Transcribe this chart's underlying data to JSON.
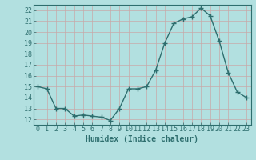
{
  "x": [
    0,
    1,
    2,
    3,
    4,
    5,
    6,
    7,
    8,
    9,
    10,
    11,
    12,
    13,
    14,
    15,
    16,
    17,
    18,
    19,
    20,
    21,
    22,
    23
  ],
  "y": [
    15.0,
    14.8,
    13.0,
    13.0,
    12.3,
    12.4,
    12.3,
    12.2,
    11.9,
    13.0,
    14.8,
    14.8,
    15.0,
    16.5,
    19.0,
    20.8,
    21.2,
    21.4,
    22.2,
    21.5,
    19.2,
    16.3,
    14.5,
    14.0
  ],
  "line_color": "#2e6e6e",
  "marker": "+",
  "markersize": 4,
  "linewidth": 1.0,
  "background_color": "#b2e0e0",
  "grid_color": "#c8a8a8",
  "xlabel": "Humidex (Indice chaleur)",
  "xlim": [
    -0.5,
    23.5
  ],
  "ylim": [
    11.5,
    22.5
  ],
  "yticks": [
    12,
    13,
    14,
    15,
    16,
    17,
    18,
    19,
    20,
    21,
    22
  ],
  "xticks": [
    0,
    1,
    2,
    3,
    4,
    5,
    6,
    7,
    8,
    9,
    10,
    11,
    12,
    13,
    14,
    15,
    16,
    17,
    18,
    19,
    20,
    21,
    22,
    23
  ],
  "tick_color": "#2e6e6e",
  "label_color": "#2e6e6e",
  "xlabel_fontsize": 7,
  "tick_fontsize": 6
}
